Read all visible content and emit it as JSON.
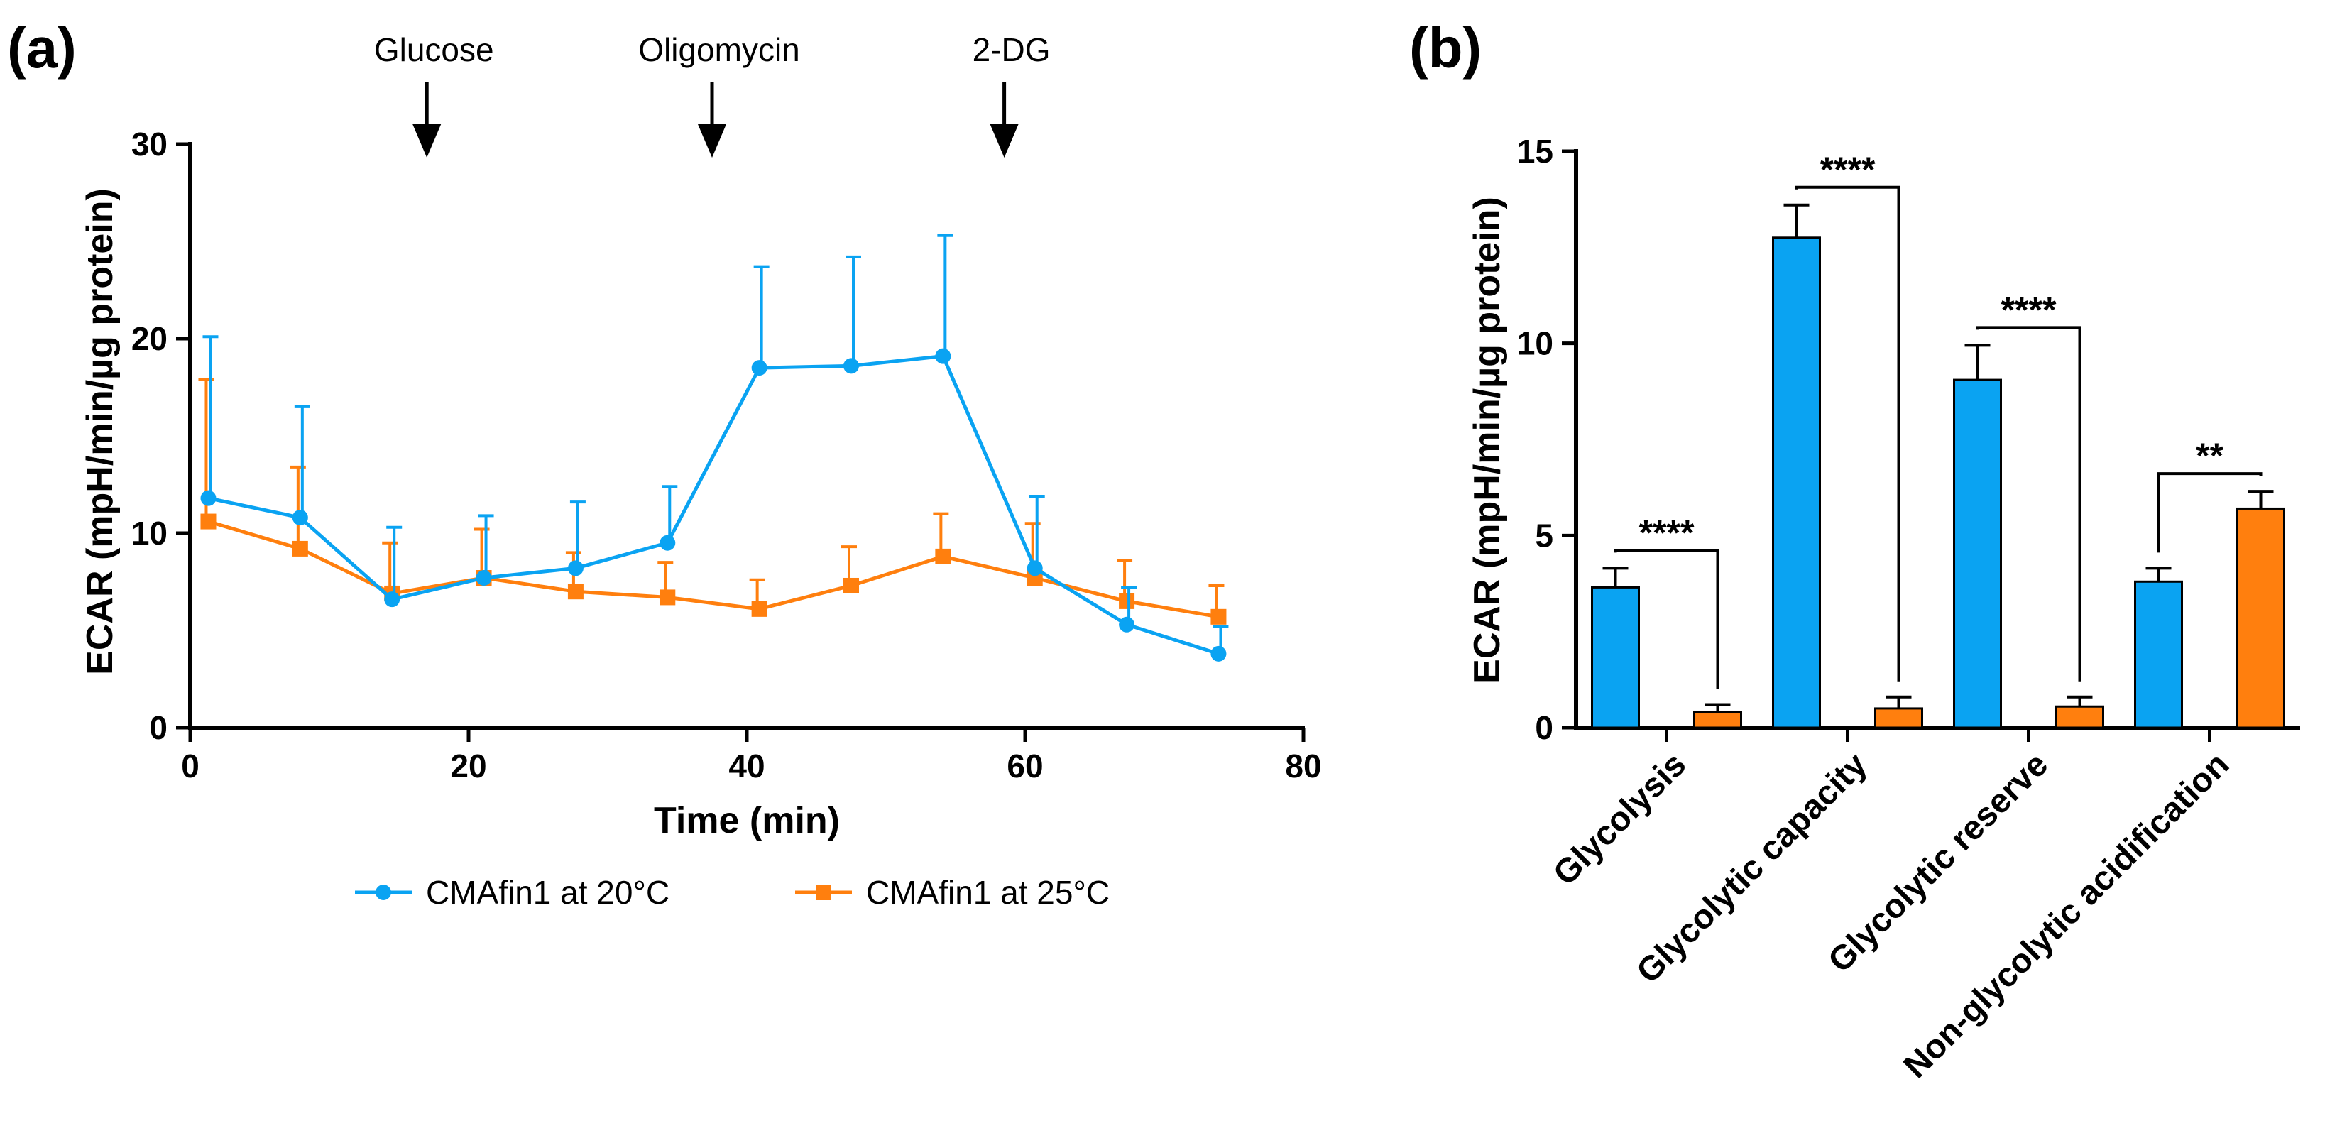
{
  "colors": {
    "series_20c": "#0aa3f2",
    "series_25c": "#ff7f0e",
    "axis": "#000000"
  },
  "chart_data": [
    {
      "type": "line",
      "panel_label": "(a)",
      "xlabel": "Time (min)",
      "ylabel": "ECAR (mpH/min/µg protein)",
      "xlim": [
        0,
        80
      ],
      "ylim": [
        0,
        30
      ],
      "xticks": [
        "0",
        "20",
        "40",
        "60",
        "80"
      ],
      "yticks": [
        "0",
        "10",
        "20",
        "30"
      ],
      "x": [
        1.3,
        7.9,
        14.5,
        21.1,
        27.7,
        34.3,
        40.9,
        47.5,
        54.1,
        60.7,
        67.3,
        73.9
      ],
      "series": [
        {
          "name": "CMAfin1 at 20°C",
          "marker": "circle",
          "values": [
            11.8,
            10.8,
            6.6,
            7.7,
            8.2,
            9.5,
            18.5,
            18.6,
            19.1,
            8.2,
            5.3,
            3.8
          ],
          "errors": [
            8.3,
            5.7,
            3.7,
            3.2,
            3.4,
            2.9,
            5.2,
            5.6,
            6.2,
            3.7,
            1.9,
            1.4
          ]
        },
        {
          "name": "CMAfin1 at 25°C",
          "marker": "square",
          "values": [
            10.6,
            9.2,
            6.9,
            7.7,
            7.0,
            6.7,
            6.1,
            7.3,
            8.8,
            7.7,
            6.5,
            5.7
          ],
          "errors": [
            7.3,
            4.2,
            2.6,
            2.5,
            2.0,
            1.8,
            1.5,
            2.0,
            2.2,
            2.8,
            2.1,
            1.6
          ]
        }
      ],
      "annotations": [
        {
          "text": "Glucose",
          "x": 17
        },
        {
          "text": "Oligomycin",
          "x": 37.5
        },
        {
          "text": "2-DG",
          "x": 58.5
        }
      ]
    },
    {
      "type": "bar",
      "panel_label": "(b)",
      "ylabel": "ECAR (mpH/min/µg protein)",
      "ylim": [
        0,
        15
      ],
      "yticks": [
        "0",
        "5",
        "10",
        "15"
      ],
      "categories": [
        "Glycolysis",
        "Glycolytic capacity",
        "Glycolytic reserve",
        "Non-glycolytic acidification"
      ],
      "series": [
        {
          "name": "CMAfin1 at 20°C",
          "values": [
            3.65,
            12.75,
            9.05,
            3.8
          ],
          "errors": [
            0.5,
            0.85,
            0.9,
            0.35
          ]
        },
        {
          "name": "CMAfin1 at 25°C",
          "values": [
            0.4,
            0.5,
            0.55,
            5.7
          ],
          "errors": [
            0.2,
            0.3,
            0.25,
            0.45
          ]
        }
      ],
      "significance": [
        "****",
        "****",
        "****",
        "**"
      ]
    }
  ]
}
